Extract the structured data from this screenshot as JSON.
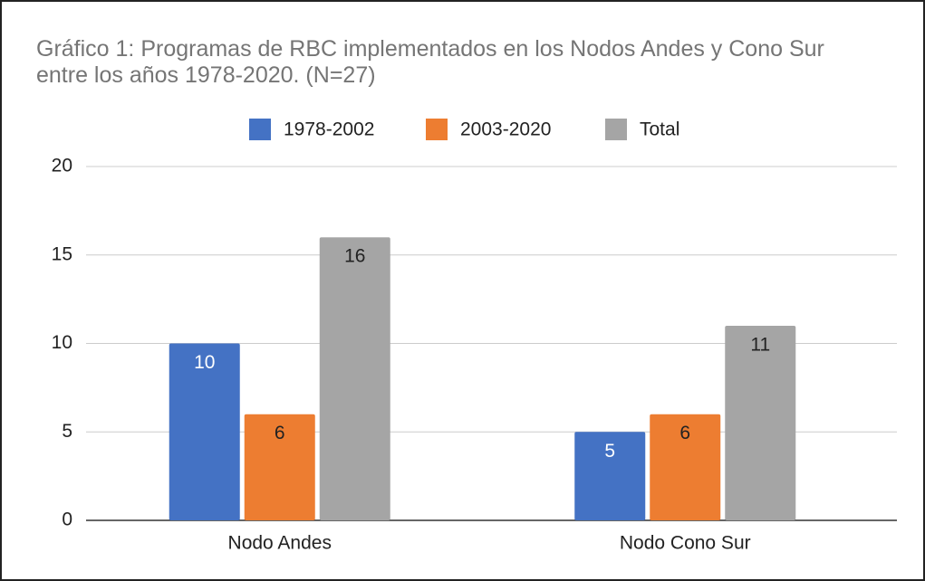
{
  "chart_data": {
    "type": "bar",
    "title": "Gráfico 1: Programas de RBC implementados en los Nodos Andes y Cono Sur entre los años 1978-2020. (N=27)",
    "categories": [
      "Nodo Andes",
      "Nodo Cono Sur"
    ],
    "series": [
      {
        "name": "1978-2002",
        "color": "#4472c4",
        "label_color": "#ffffff",
        "values": [
          10,
          5
        ]
      },
      {
        "name": "2003-2020",
        "color": "#ed7d31",
        "label_color": "#222222",
        "values": [
          6,
          6
        ]
      },
      {
        "name": "Total",
        "color": "#a5a5a5",
        "label_color": "#222222",
        "values": [
          16,
          11
        ]
      }
    ],
    "ylim": [
      0,
      20
    ],
    "yticks": [
      0,
      5,
      10,
      15,
      20
    ],
    "grid": true,
    "legend": "top"
  }
}
